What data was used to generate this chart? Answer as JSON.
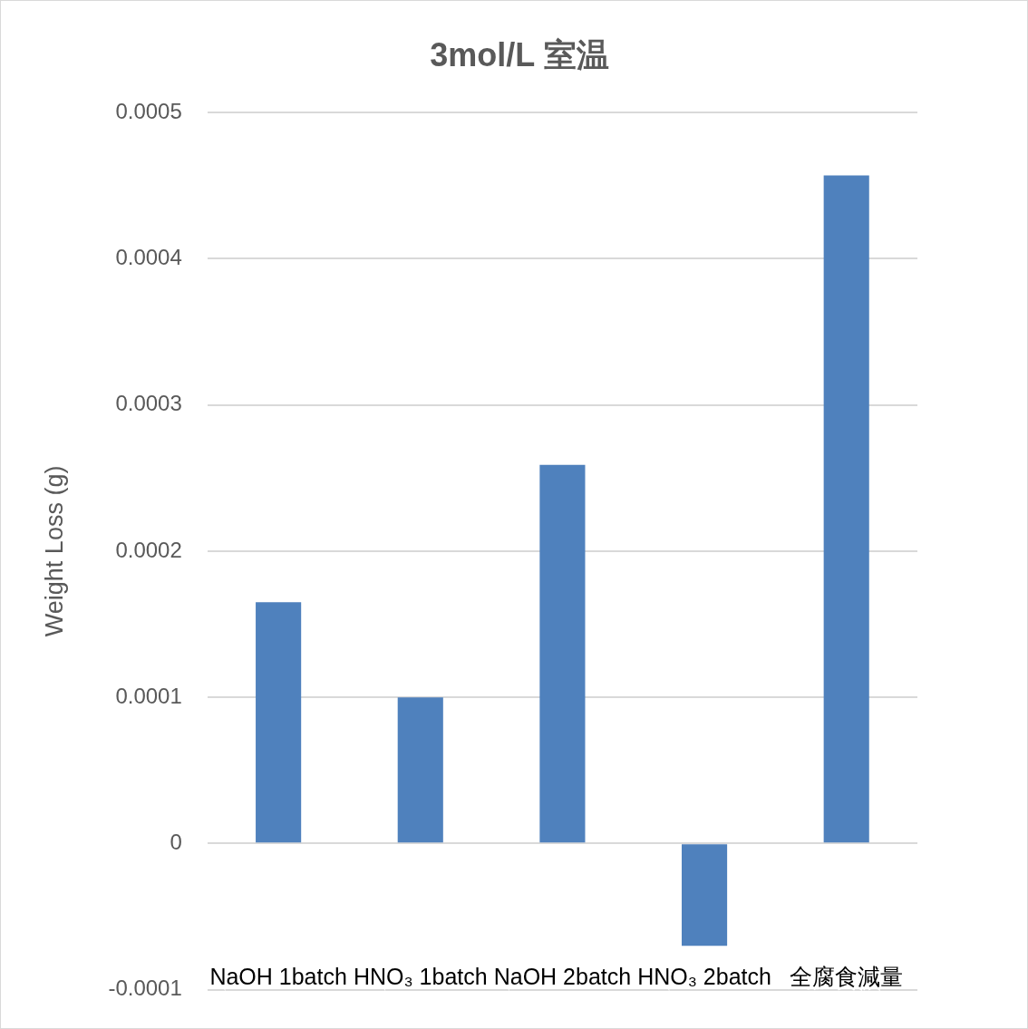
{
  "chart_data": {
    "type": "bar",
    "title": "3mol/L 室温",
    "ylabel": "Weight Loss (g)",
    "categories": [
      "NaOH 1batch",
      "HNO₃ 1batch",
      "NaOH 2batch",
      "HNO₃ 2batch",
      "全腐食減量"
    ],
    "values": [
      0.000165,
      0.0001,
      0.000259,
      -7e-05,
      0.000457
    ],
    "color": "#4f81bd",
    "ylim": [
      -0.0001,
      0.0005
    ],
    "yticks": [
      -0.0001,
      0,
      0.0001,
      0.0002,
      0.0003,
      0.0004,
      0.0005
    ],
    "grid": "y",
    "legend": false
  }
}
